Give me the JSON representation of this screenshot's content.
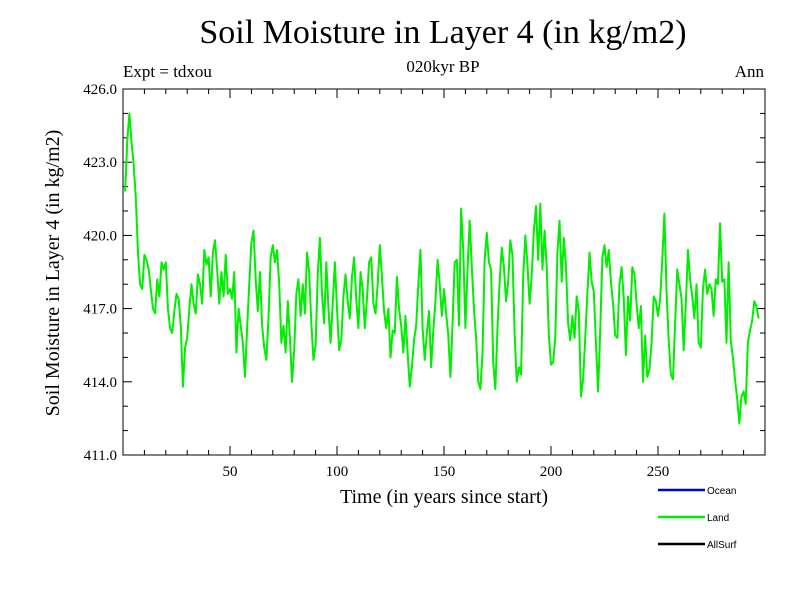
{
  "header": {
    "title": "Soil Moisture in Layer 4 (in kg/m2)",
    "subtitle": "020kyr BP",
    "left_label": "Expt = tdxou",
    "right_label": "Ann"
  },
  "chart_data": {
    "type": "line",
    "title": "Soil Moisture in Layer 4 (in kg/m2)",
    "subtitle": "020kyr BP",
    "xlabel": "Time (in years since start)",
    "ylabel": "Soil Moisture in Layer 4 (in kg/m2)",
    "xlim": [
      0,
      300
    ],
    "ylim": [
      411.0,
      426.0
    ],
    "xticks": [
      50,
      100,
      150,
      200,
      250
    ],
    "yticks": [
      "411.0",
      "414.0",
      "417.0",
      "420.0",
      "423.0",
      "426.0"
    ],
    "grid": false,
    "legend_position": "bottom-right",
    "series": [
      {
        "name": "Ocean",
        "color": "#0000cc",
        "values": []
      },
      {
        "name": "Land",
        "color": "#00ee00",
        "x_start": 1,
        "x_step": 1,
        "values": [
          421.8,
          423.9,
          425.0,
          423.8,
          422.9,
          421.5,
          419.3,
          418.0,
          417.8,
          419.2,
          419.0,
          418.6,
          417.8,
          417.0,
          416.8,
          418.2,
          417.5,
          418.9,
          418.6,
          418.9,
          417.0,
          416.2,
          416.0,
          416.9,
          417.6,
          417.4,
          416.3,
          413.8,
          415.4,
          415.8,
          417.0,
          418.0,
          417.2,
          416.8,
          418.4,
          418.0,
          417.2,
          419.4,
          418.8,
          419.1,
          417.5,
          419.3,
          419.8,
          418.6,
          417.2,
          418.5,
          417.5,
          419.2,
          417.6,
          417.8,
          417.4,
          418.5,
          415.2,
          417.0,
          416.3,
          415.6,
          414.2,
          416.2,
          418.0,
          419.7,
          420.2,
          418.2,
          416.9,
          418.5,
          416.3,
          415.4,
          414.9,
          416.6,
          419.1,
          419.6,
          418.9,
          419.4,
          418.0,
          415.6,
          416.3,
          415.2,
          417.3,
          415.8,
          414.0,
          415.3,
          417.6,
          418.2,
          416.7,
          418.0,
          416.8,
          419.3,
          418.5,
          416.4,
          414.9,
          415.5,
          418.4,
          419.9,
          417.6,
          416.4,
          418.9,
          417.0,
          415.6,
          417.2,
          418.9,
          417.0,
          415.3,
          415.7,
          417.5,
          418.4,
          417.3,
          416.6,
          418.3,
          419.1,
          417.4,
          416.2,
          418.5,
          417.8,
          416.2,
          417.4,
          418.9,
          419.1,
          417.2,
          416.8,
          418.0,
          419.6,
          418.3,
          416.9,
          416.2,
          417.0,
          415.0,
          416.1,
          416.0,
          418.3,
          417.0,
          416.3,
          415.2,
          416.7,
          415.2,
          413.8,
          414.6,
          415.7,
          416.3,
          418.0,
          419.4,
          416.2,
          414.9,
          416.0,
          416.9,
          414.6,
          416.1,
          417.3,
          419.0,
          418.0,
          416.7,
          417.8,
          416.8,
          415.9,
          414.2,
          416.4,
          418.9,
          419.0,
          416.3,
          421.1,
          419.4,
          416.2,
          418.6,
          420.6,
          418.7,
          417.0,
          415.8,
          414.0,
          413.7,
          415.2,
          419.0,
          420.1,
          418.9,
          418.6,
          414.8,
          413.7,
          416.2,
          418.1,
          419.5,
          418.7,
          417.3,
          418.1,
          419.8,
          419.2,
          416.0,
          414.0,
          414.6,
          414.3,
          418.3,
          420.0,
          418.8,
          417.2,
          418.4,
          420.2,
          421.2,
          419.0,
          421.3,
          418.6,
          420.2,
          418.7,
          415.9,
          414.7,
          414.8,
          415.8,
          419.3,
          420.6,
          418.1,
          419.9,
          418.7,
          416.4,
          415.7,
          416.7,
          415.8,
          417.5,
          416.9,
          413.4,
          414.1,
          415.8,
          417.6,
          419.3,
          418.1,
          417.7,
          415.6,
          413.6,
          416.1,
          419.1,
          419.6,
          418.7,
          419.4,
          418.1,
          417.2,
          415.9,
          415.8,
          418.0,
          418.7,
          417.4,
          415.1,
          417.5,
          416.5,
          418.7,
          418.4,
          417.2,
          416.2,
          417.1,
          414.0,
          415.9,
          414.2,
          414.5,
          415.6,
          417.5,
          417.3,
          416.7,
          417.4,
          419.0,
          420.9,
          417.7,
          415.7,
          414.3,
          414.1,
          416.4,
          418.6,
          418.0,
          417.4,
          415.3,
          417.2,
          419.4,
          418.2,
          417.5,
          416.6,
          418.0,
          415.6,
          415.4,
          417.8,
          418.6,
          417.6,
          418.0,
          417.8,
          416.7,
          418.2,
          418.0,
          420.5,
          418.1,
          418.2,
          415.6,
          418.9,
          415.7,
          415.0,
          414.1,
          413.3,
          412.3,
          413.4,
          413.6,
          413.1,
          415.6,
          416.1,
          416.5,
          417.3,
          417.1,
          416.6
        ]
      },
      {
        "name": "AllSurf",
        "color": "#000000",
        "values": []
      }
    ]
  }
}
